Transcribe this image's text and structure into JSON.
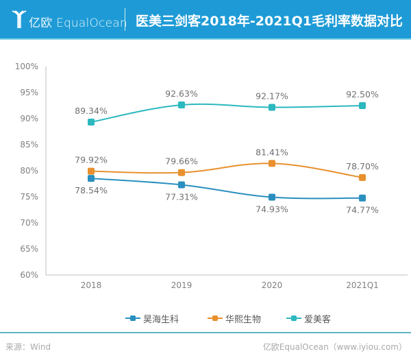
{
  "header": {
    "logo_text": "亿欧 EqualOcean",
    "title": "医美三剑客2018年-2021Q1毛利率数据对比",
    "background_color": "#1e9bd6"
  },
  "footer": {
    "source": "来源：Wind",
    "credit": "亿欧EqualOcean（www.iyiou.com）"
  },
  "chart_data": {
    "type": "line",
    "title": "医美三剑客2018年-2021Q1毛利率数据对比",
    "xlabel": "",
    "ylabel": "",
    "categories": [
      "2018",
      "2019",
      "2020",
      "2021Q1"
    ],
    "ylim": [
      60,
      100
    ],
    "yticks": [
      "60%",
      "65%",
      "70%",
      "75%",
      "80%",
      "85%",
      "90%",
      "95%",
      "100%"
    ],
    "ytick_values": [
      60,
      65,
      70,
      75,
      80,
      85,
      90,
      95,
      100
    ],
    "grid": false,
    "legend_position": "bottom",
    "smooth": true,
    "series": [
      {
        "name": "昊海生科",
        "values": [
          78.54,
          77.31,
          74.93,
          74.77
        ],
        "labels": [
          "78.54%",
          "77.31%",
          "74.93%",
          "74.77%"
        ],
        "label_position": "below",
        "color": "#2a8fbf"
      },
      {
        "name": "华熙生物",
        "values": [
          79.92,
          79.66,
          81.41,
          78.7
        ],
        "labels": [
          "79.92%",
          "79.66%",
          "81.41%",
          "78.70%"
        ],
        "label_position": "above",
        "color": "#e8902e"
      },
      {
        "name": "爱美客",
        "values": [
          89.34,
          92.63,
          92.17,
          92.5
        ],
        "labels": [
          "89.34%",
          "92.63%",
          "92.17%",
          "92.50%"
        ],
        "label_position": "above",
        "color": "#2bb8bf"
      }
    ]
  }
}
